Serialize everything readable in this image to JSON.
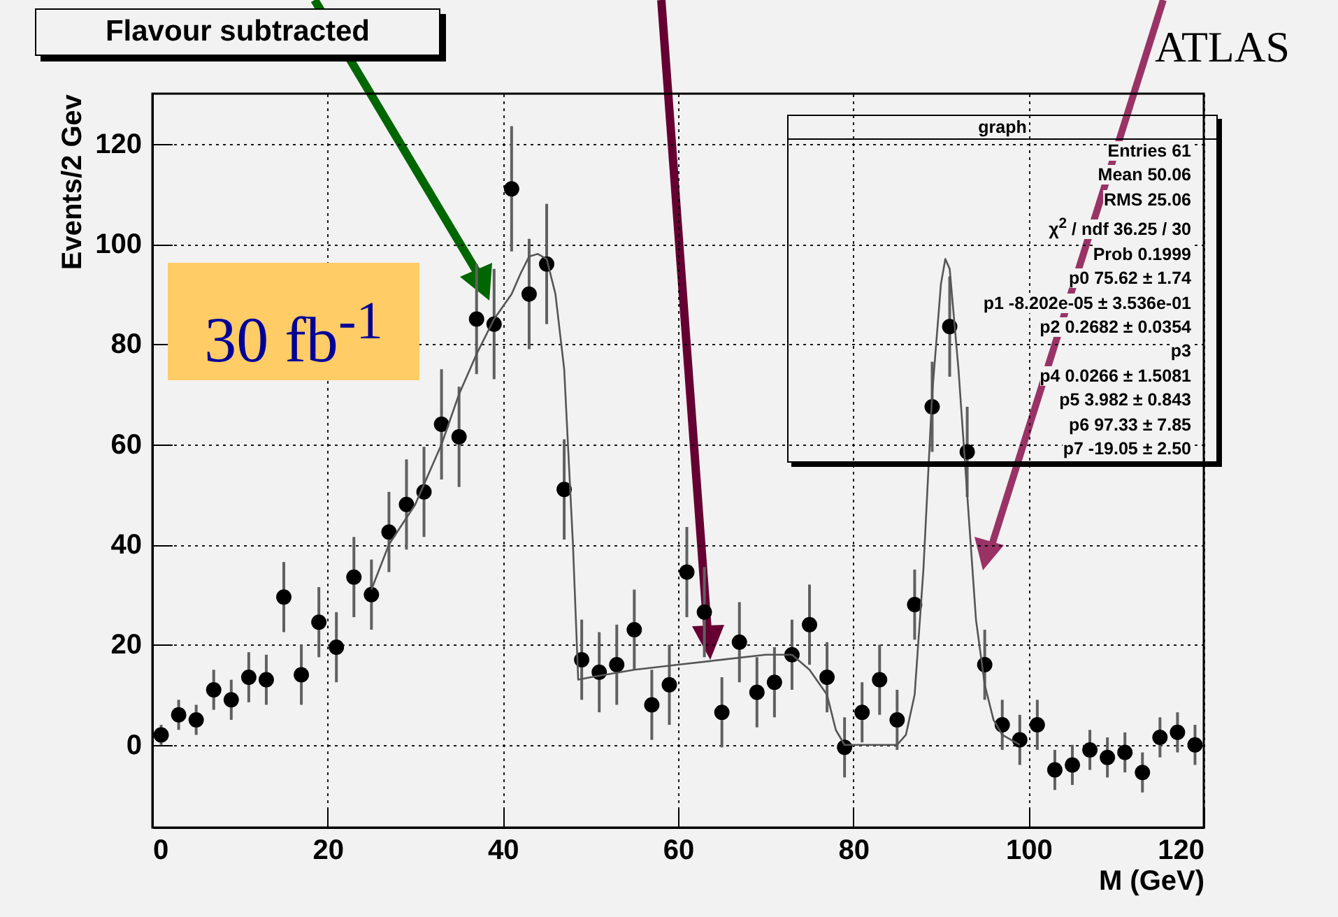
{
  "chart_data": {
    "type": "scatter",
    "title": "Flavour subtracted",
    "xlabel": "M (GeV)",
    "ylabel": "Events/2 Gev",
    "xlim": [
      0,
      120
    ],
    "ylim": [
      -16.5,
      130
    ],
    "xticks": [
      0,
      20,
      40,
      60,
      80,
      100,
      120
    ],
    "yticks": [
      0,
      20,
      40,
      60,
      80,
      100,
      120
    ],
    "grid": true,
    "annotations": [
      "30 fb$^{-1}$",
      "ATLAS",
      "graph",
      "Entries 61",
      "Mean 50.06",
      "RMS 25.06",
      "χ$^{2}$ / ndf 36.25 / 30",
      "Prob 0.1999",
      "p0 75.62 ± 1.74",
      "p1 -8.202e-05 ± 3.536e-01",
      "p2 0.2682 ± 0.0354",
      "p3",
      "p4 0.0266 ± 1.5081",
      "p5 3.982 ± 0.843",
      "p6 97.33 ± 7.85",
      "p7 -19.05 ± 2.50"
    ],
    "series": [
      {
        "marker": "circle",
        "color": "#000000",
        "x": [
          1,
          3,
          5,
          7,
          9,
          11,
          13,
          15,
          17,
          19,
          21,
          23,
          25,
          27,
          29,
          31,
          33,
          35,
          37,
          39,
          41,
          43,
          45,
          47,
          49,
          51,
          53,
          55,
          57,
          59,
          61,
          63,
          65,
          67,
          69,
          71,
          73,
          75,
          77,
          79,
          81,
          83,
          85,
          87,
          89,
          91,
          93,
          95,
          97,
          99,
          101,
          103,
          105,
          107,
          109,
          111,
          113,
          115,
          117,
          119
        ],
        "values": [
          2,
          6,
          5,
          11,
          9,
          13.5,
          13,
          29.5,
          14,
          24.5,
          19.5,
          33.5,
          30,
          42.5,
          48,
          50.5,
          64,
          61.5,
          85,
          84,
          111,
          90,
          96,
          51,
          17,
          14.5,
          16,
          23,
          8,
          12,
          34.5,
          26.5,
          6.5,
          20.5,
          10.5,
          12.5,
          18,
          24,
          13.5,
          -0.5,
          6.5,
          13,
          5,
          28,
          67.5,
          83.5,
          58.5,
          16,
          4,
          1,
          4,
          -5,
          -4,
          -1,
          -2.5,
          -1.5,
          -5.5,
          1.5,
          2.5,
          0
        ],
        "errors": [
          2,
          3,
          3,
          4,
          4,
          5,
          5,
          7,
          6,
          7,
          7,
          8,
          7,
          8,
          9,
          9,
          11,
          10,
          11,
          11,
          12.5,
          11,
          12,
          10,
          8,
          8,
          8,
          8,
          7,
          8,
          9,
          9,
          7,
          8,
          7,
          7,
          7,
          8,
          7,
          6,
          6,
          7,
          6,
          7,
          9,
          10,
          9,
          7,
          5,
          5,
          5,
          4,
          4,
          4,
          4,
          4,
          4,
          4,
          4,
          4
        ]
      },
      {
        "type": "line",
        "color": "#555555",
        "x": [
          25,
          27,
          30,
          33,
          35,
          37,
          39,
          41,
          42,
          43,
          44,
          45,
          46,
          47,
          48,
          48.6,
          50,
          55,
          60,
          65,
          70,
          73,
          75,
          77,
          78,
          79,
          85,
          86,
          87,
          88,
          89,
          90,
          90.5,
          91,
          92,
          93,
          94,
          95,
          96,
          97,
          99
        ],
        "values": [
          31,
          40,
          48,
          60,
          70,
          78,
          85,
          90,
          94,
          97.5,
          98,
          97,
          90,
          75,
          40,
          13,
          13.5,
          15,
          16,
          17,
          18,
          18,
          15,
          10,
          3,
          0,
          0,
          2,
          10,
          35,
          70,
          92,
          97,
          95,
          75,
          50,
          25,
          12,
          5,
          2,
          0
        ]
      }
    ]
  }
}
